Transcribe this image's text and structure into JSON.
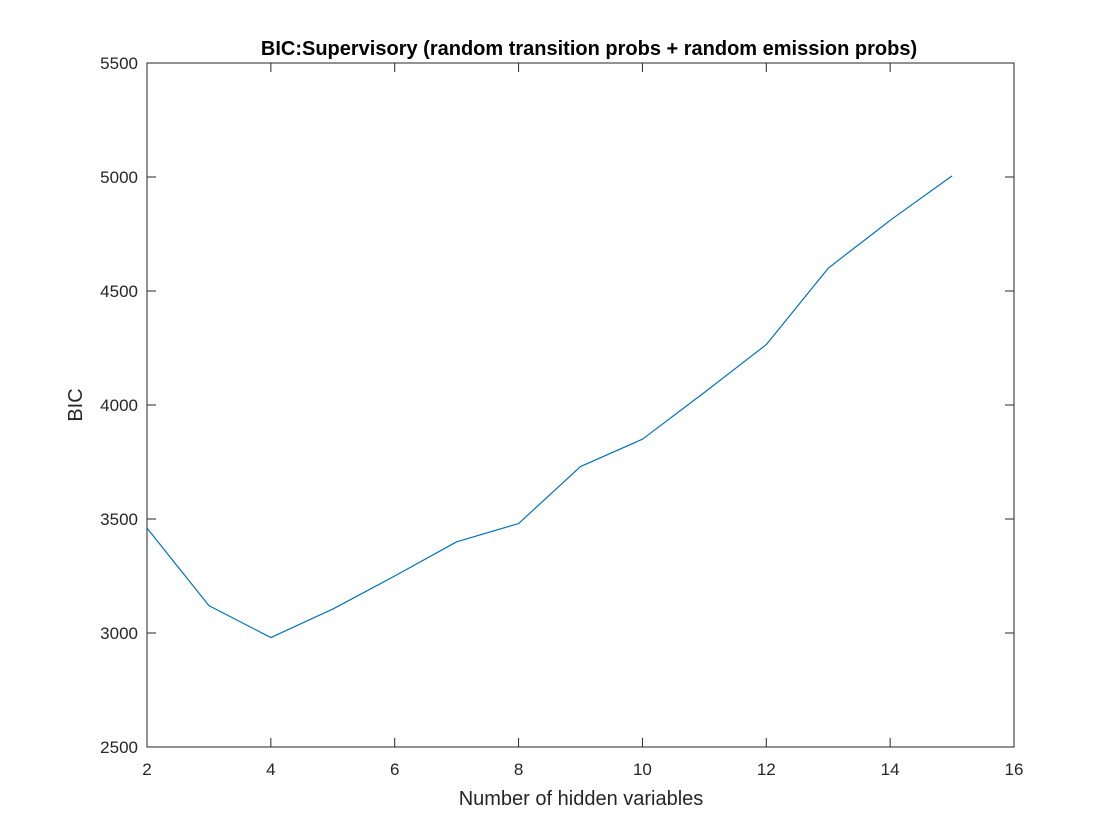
{
  "chart_data": {
    "type": "line",
    "title": "BIC:Supervisory (random transition probs + random emission probs)",
    "xlabel": "Number of hidden variables",
    "ylabel": "BIC",
    "xlim": [
      2,
      16
    ],
    "ylim": [
      2500,
      5500
    ],
    "xticks": [
      2,
      4,
      6,
      8,
      10,
      12,
      14,
      16
    ],
    "yticks": [
      2500,
      3000,
      3500,
      4000,
      4500,
      5000,
      5500
    ],
    "grid": false,
    "legend": "none",
    "line_color": "#0072BD",
    "series": [
      {
        "x": [
          2,
          3,
          4,
          5,
          6,
          7,
          8,
          9,
          10,
          11,
          12,
          13,
          14,
          15
        ],
        "values": [
          3460,
          3120,
          2980,
          3105,
          3250,
          3400,
          3480,
          3730,
          3850,
          4055,
          4265,
          4600,
          4810,
          5005
        ]
      }
    ]
  }
}
